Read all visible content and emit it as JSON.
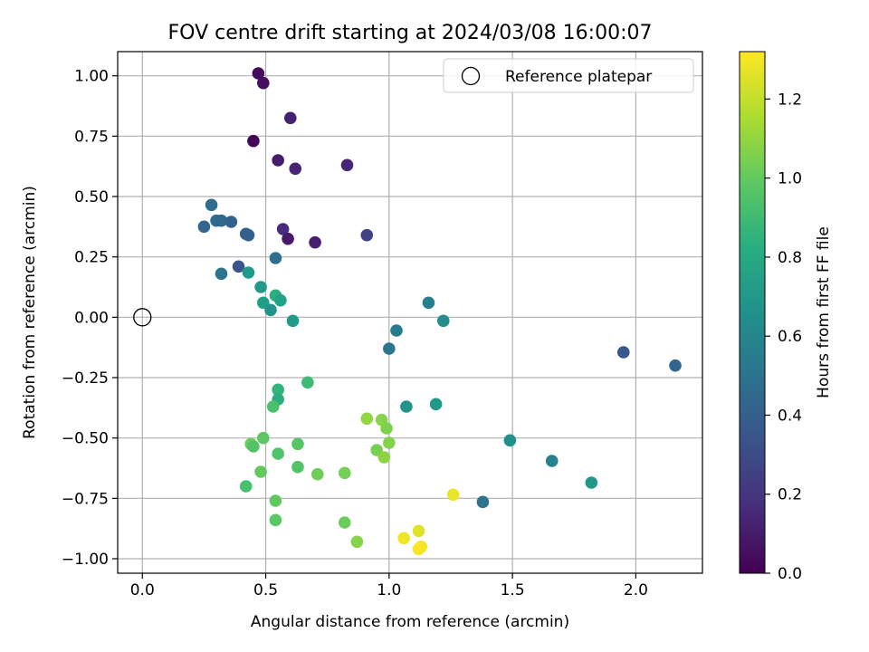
{
  "chart_data": {
    "type": "scatter",
    "title": "FOV centre drift starting at 2024/03/08 16:00:07",
    "xlabel": "Angular distance from reference (arcmin)",
    "ylabel": "Rotation from reference (arcmin)",
    "xlim": [
      -0.1,
      2.27
    ],
    "ylim": [
      -1.06,
      1.1
    ],
    "xticks": [
      "0.0",
      "0.5",
      "1.0",
      "1.5",
      "2.0"
    ],
    "xtick_values": [
      0,
      0.5,
      1.0,
      1.5,
      2.0
    ],
    "yticks": [
      "−1.00",
      "−0.75",
      "−0.50",
      "−0.25",
      "0.00",
      "0.25",
      "0.50",
      "0.75",
      "1.00"
    ],
    "ytick_values": [
      -1.0,
      -0.75,
      -0.5,
      -0.25,
      0,
      0.25,
      0.5,
      0.75,
      1.0
    ],
    "grid": true,
    "legend": {
      "position": "top-right",
      "entries": [
        "Reference platepar"
      ]
    },
    "reference_point": {
      "x": 0,
      "y": 0
    },
    "colorbar": {
      "label": "Hours from first FF file",
      "colormap": "viridis",
      "range": [
        0,
        1.32
      ],
      "ticks": [
        "0.0",
        "0.2",
        "0.4",
        "0.6",
        "0.8",
        "1.0",
        "1.2"
      ],
      "tick_values": [
        0,
        0.2,
        0.4,
        0.6,
        0.8,
        1.0,
        1.2
      ]
    },
    "points": [
      {
        "x": 0.47,
        "y": 1.01,
        "c": 0.04
      },
      {
        "x": 0.49,
        "y": 0.97,
        "c": 0.05
      },
      {
        "x": 0.45,
        "y": 0.73,
        "c": 0.02
      },
      {
        "x": 0.6,
        "y": 0.825,
        "c": 0.12
      },
      {
        "x": 0.55,
        "y": 0.65,
        "c": 0.1
      },
      {
        "x": 0.62,
        "y": 0.615,
        "c": 0.13
      },
      {
        "x": 0.83,
        "y": 0.63,
        "c": 0.14
      },
      {
        "x": 0.57,
        "y": 0.365,
        "c": 0.17
      },
      {
        "x": 0.59,
        "y": 0.325,
        "c": 0.09
      },
      {
        "x": 0.7,
        "y": 0.31,
        "c": 0.11
      },
      {
        "x": 0.91,
        "y": 0.34,
        "c": 0.26
      },
      {
        "x": 0.28,
        "y": 0.465,
        "c": 0.47
      },
      {
        "x": 0.25,
        "y": 0.375,
        "c": 0.43
      },
      {
        "x": 0.3,
        "y": 0.4,
        "c": 0.45
      },
      {
        "x": 0.32,
        "y": 0.4,
        "c": 0.44
      },
      {
        "x": 0.36,
        "y": 0.395,
        "c": 0.41
      },
      {
        "x": 0.42,
        "y": 0.345,
        "c": 0.39
      },
      {
        "x": 0.43,
        "y": 0.34,
        "c": 0.4
      },
      {
        "x": 0.54,
        "y": 0.245,
        "c": 0.48
      },
      {
        "x": 0.39,
        "y": 0.21,
        "c": 0.35
      },
      {
        "x": 0.32,
        "y": 0.18,
        "c": 0.5
      },
      {
        "x": 0.43,
        "y": 0.185,
        "c": 0.72
      },
      {
        "x": 0.48,
        "y": 0.125,
        "c": 0.7
      },
      {
        "x": 0.54,
        "y": 0.09,
        "c": 0.82
      },
      {
        "x": 0.49,
        "y": 0.06,
        "c": 0.74
      },
      {
        "x": 0.56,
        "y": 0.07,
        "c": 0.76
      },
      {
        "x": 0.52,
        "y": 0.03,
        "c": 0.68
      },
      {
        "x": 0.61,
        "y": -0.015,
        "c": 0.72
      },
      {
        "x": 1.16,
        "y": 0.06,
        "c": 0.57
      },
      {
        "x": 1.22,
        "y": -0.015,
        "c": 0.65
      },
      {
        "x": 1.03,
        "y": -0.055,
        "c": 0.55
      },
      {
        "x": 1.0,
        "y": -0.13,
        "c": 0.52
      },
      {
        "x": 1.95,
        "y": -0.145,
        "c": 0.36
      },
      {
        "x": 2.16,
        "y": -0.2,
        "c": 0.43
      },
      {
        "x": 0.67,
        "y": -0.27,
        "c": 0.9
      },
      {
        "x": 0.55,
        "y": -0.3,
        "c": 0.86
      },
      {
        "x": 0.55,
        "y": -0.34,
        "c": 0.82
      },
      {
        "x": 0.53,
        "y": -0.37,
        "c": 0.94
      },
      {
        "x": 1.07,
        "y": -0.37,
        "c": 0.68
      },
      {
        "x": 1.19,
        "y": -0.36,
        "c": 0.7
      },
      {
        "x": 0.91,
        "y": -0.42,
        "c": 1.1
      },
      {
        "x": 0.97,
        "y": -0.425,
        "c": 1.08
      },
      {
        "x": 0.99,
        "y": -0.46,
        "c": 1.06
      },
      {
        "x": 1.49,
        "y": -0.51,
        "c": 0.66
      },
      {
        "x": 0.49,
        "y": -0.5,
        "c": 0.98
      },
      {
        "x": 0.44,
        "y": -0.525,
        "c": 1.02
      },
      {
        "x": 0.45,
        "y": -0.535,
        "c": 0.96
      },
      {
        "x": 0.63,
        "y": -0.525,
        "c": 0.97
      },
      {
        "x": 1.0,
        "y": -0.52,
        "c": 1.07
      },
      {
        "x": 0.95,
        "y": -0.55,
        "c": 1.05
      },
      {
        "x": 0.55,
        "y": -0.565,
        "c": 0.95
      },
      {
        "x": 0.98,
        "y": -0.58,
        "c": 1.09
      },
      {
        "x": 1.66,
        "y": -0.595,
        "c": 0.58
      },
      {
        "x": 0.63,
        "y": -0.62,
        "c": 0.96
      },
      {
        "x": 0.48,
        "y": -0.64,
        "c": 1.0
      },
      {
        "x": 0.71,
        "y": -0.65,
        "c": 1.03
      },
      {
        "x": 0.82,
        "y": -0.645,
        "c": 1.04
      },
      {
        "x": 1.82,
        "y": -0.685,
        "c": 0.7
      },
      {
        "x": 0.42,
        "y": -0.7,
        "c": 0.93
      },
      {
        "x": 1.26,
        "y": -0.735,
        "c": 1.28
      },
      {
        "x": 0.54,
        "y": -0.76,
        "c": 0.99
      },
      {
        "x": 1.38,
        "y": -0.765,
        "c": 0.5
      },
      {
        "x": 0.54,
        "y": -0.84,
        "c": 0.98
      },
      {
        "x": 0.82,
        "y": -0.85,
        "c": 1.02
      },
      {
        "x": 1.12,
        "y": -0.885,
        "c": 1.26
      },
      {
        "x": 1.06,
        "y": -0.915,
        "c": 1.29
      },
      {
        "x": 0.87,
        "y": -0.93,
        "c": 1.08
      },
      {
        "x": 1.13,
        "y": -0.95,
        "c": 1.3
      },
      {
        "x": 1.12,
        "y": -0.96,
        "c": 1.31
      }
    ]
  }
}
